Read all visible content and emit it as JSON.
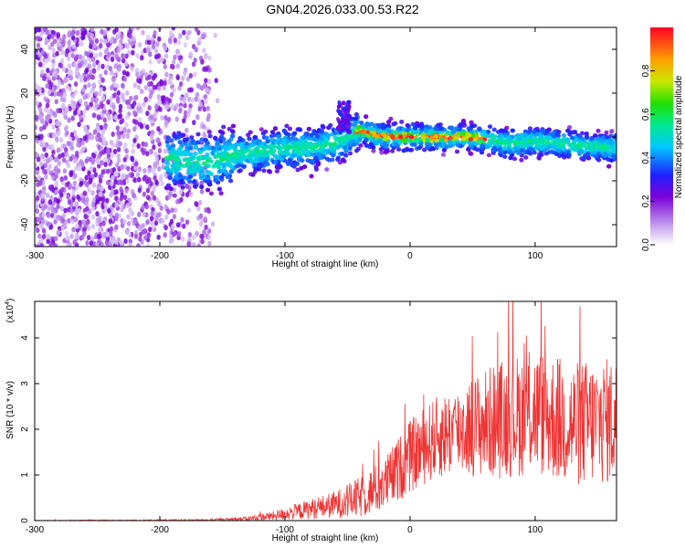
{
  "title": "GN04.2026.033.00.53.R22",
  "chart_data": [
    {
      "type": "heatmap",
      "name": "spectrogram",
      "xlabel": "Height of straight line (km)",
      "ylabel": "Frequency (Hz)",
      "xlim": [
        -300,
        165
      ],
      "ylim": [
        -50,
        50
      ],
      "xticks": [
        -300,
        -200,
        -100,
        0,
        100
      ],
      "yticks": [
        -40,
        -20,
        0,
        20,
        40
      ],
      "colorbar": {
        "label": "Normalized spectral amplitude",
        "range": [
          0,
          1
        ],
        "ticks": [
          0.0,
          0.2,
          0.4,
          0.6,
          0.8
        ]
      },
      "ridge": [
        {
          "x": -190,
          "y": -10
        },
        {
          "x": -160,
          "y": -12
        },
        {
          "x": -140,
          "y": -8
        },
        {
          "x": -120,
          "y": -7
        },
        {
          "x": -100,
          "y": -5
        },
        {
          "x": -80,
          "y": -5
        },
        {
          "x": -60,
          "y": -3
        },
        {
          "x": -40,
          "y": 3
        },
        {
          "x": -30,
          "y": 1
        },
        {
          "x": -20,
          "y": 0
        },
        {
          "x": 0,
          "y": 0
        },
        {
          "x": 20,
          "y": 0
        },
        {
          "x": 40,
          "y": 0
        },
        {
          "x": 60,
          "y": -1
        },
        {
          "x": 80,
          "y": -3
        },
        {
          "x": 100,
          "y": -2
        },
        {
          "x": 120,
          "y": -3
        },
        {
          "x": 140,
          "y": -4
        },
        {
          "x": 160,
          "y": -5
        }
      ]
    },
    {
      "type": "line",
      "name": "snr",
      "xlabel": "Height of straight line (km)",
      "ylabel": "SNR (10 * v/v)",
      "yscale_label": "(x10",
      "yscale_exp": "4",
      "xlim": [
        -300,
        165
      ],
      "ylim": [
        0,
        4.8
      ],
      "xticks": [
        -300,
        -200,
        -100,
        0,
        100
      ],
      "yticks": [
        0,
        1,
        2,
        3,
        4
      ],
      "color": "#ef3434",
      "envelope": [
        {
          "x": -300,
          "mean": 0.0,
          "amp": 0.01
        },
        {
          "x": -160,
          "mean": 0.01,
          "amp": 0.02
        },
        {
          "x": -130,
          "mean": 0.04,
          "amp": 0.05
        },
        {
          "x": -110,
          "mean": 0.1,
          "amp": 0.1
        },
        {
          "x": -90,
          "mean": 0.2,
          "amp": 0.18
        },
        {
          "x": -60,
          "mean": 0.35,
          "amp": 0.3
        },
        {
          "x": -40,
          "mean": 0.5,
          "amp": 0.45
        },
        {
          "x": -20,
          "mean": 0.8,
          "amp": 0.6
        },
        {
          "x": 0,
          "mean": 1.4,
          "amp": 0.8
        },
        {
          "x": 20,
          "mean": 1.8,
          "amp": 0.9
        },
        {
          "x": 40,
          "mean": 2.0,
          "amp": 1.0
        },
        {
          "x": 70,
          "mean": 2.2,
          "amp": 1.3
        },
        {
          "x": 100,
          "mean": 2.4,
          "amp": 1.4
        },
        {
          "x": 130,
          "mean": 2.1,
          "amp": 1.4
        },
        {
          "x": 165,
          "mean": 2.2,
          "amp": 1.4
        }
      ]
    }
  ]
}
